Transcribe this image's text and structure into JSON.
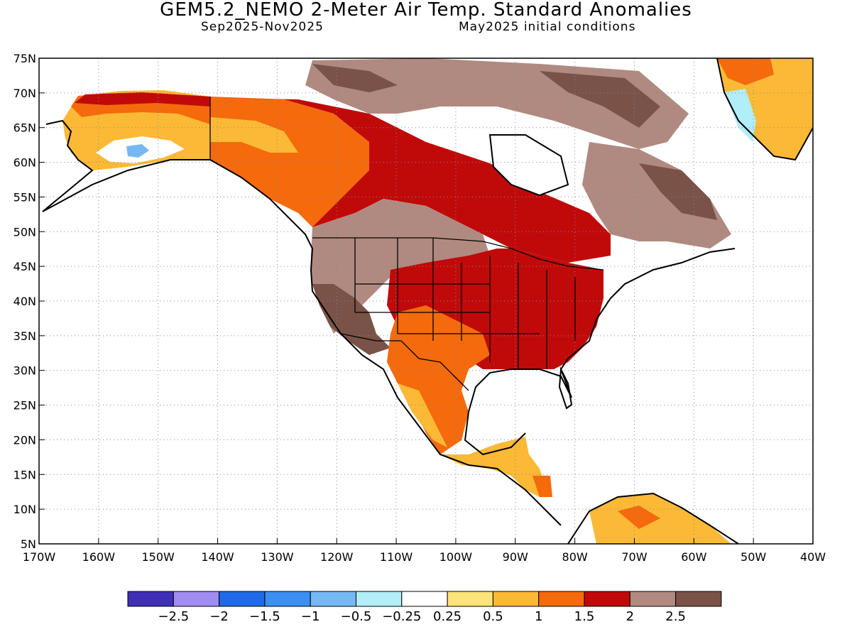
{
  "header": {
    "title": "GEM5.2_NEMO 2-Meter Air Temp. Standard Anomalies",
    "period": "Sep2025-Nov2025",
    "init": "May2025 initial conditions"
  },
  "axes": {
    "lat_ticks": [
      "75N",
      "70N",
      "65N",
      "60N",
      "55N",
      "50N",
      "45N",
      "40N",
      "35N",
      "30N",
      "25N",
      "20N",
      "15N",
      "10N",
      "5N"
    ],
    "lon_ticks": [
      "170W",
      "160W",
      "150W",
      "140W",
      "130W",
      "120W",
      "110W",
      "100W",
      "90W",
      "80W",
      "70W",
      "60W",
      "50W",
      "40W"
    ]
  },
  "colorbar": {
    "colors": [
      "#3e2fb4",
      "#a08cf2",
      "#1f6ae6",
      "#3b8ff0",
      "#76b8f4",
      "#b0eef8",
      "#ffffff",
      "#fde37a",
      "#fbb936",
      "#f46a0c",
      "#c00a0a",
      "#b08a80",
      "#7a5248"
    ],
    "labels": [
      "-2.5",
      "-2",
      "-1.5",
      "-1",
      "-0.5",
      "-0.25",
      "0.25",
      "0.5",
      "1",
      "1.5",
      "2",
      "2.5"
    ]
  },
  "map": {
    "projection": "equirectangular",
    "lon_range": [
      -170,
      -40
    ],
    "lat_range": [
      5,
      75
    ],
    "gridlines": "dotted",
    "variable": "2-Meter Air Temp. Standard Anomalies",
    "regions": [
      {
        "name": "Alaska interior",
        "color": "#fbb936"
      },
      {
        "name": "Southwest Alaska",
        "color": "#76b8f4"
      },
      {
        "name": "Yukon / British Columbia",
        "color": "#f46a0c"
      },
      {
        "name": "Central Canada",
        "color": "#c00a0a"
      },
      {
        "name": "Canadian Arctic",
        "color": "#b08a80"
      },
      {
        "name": "Northern Great Plains",
        "color": "#b08a80"
      },
      {
        "name": "Southwest US",
        "color": "#7a5248"
      },
      {
        "name": "Central and Eastern US",
        "color": "#c00a0a"
      },
      {
        "name": "Texas / Mexico",
        "color": "#f46a0c"
      },
      {
        "name": "Central America",
        "color": "#fde37a"
      },
      {
        "name": "Greenland",
        "color": "#fbb936"
      },
      {
        "name": "Labrador",
        "color": "#7a5248"
      },
      {
        "name": "Northern South America",
        "color": "#fbb936"
      }
    ]
  }
}
